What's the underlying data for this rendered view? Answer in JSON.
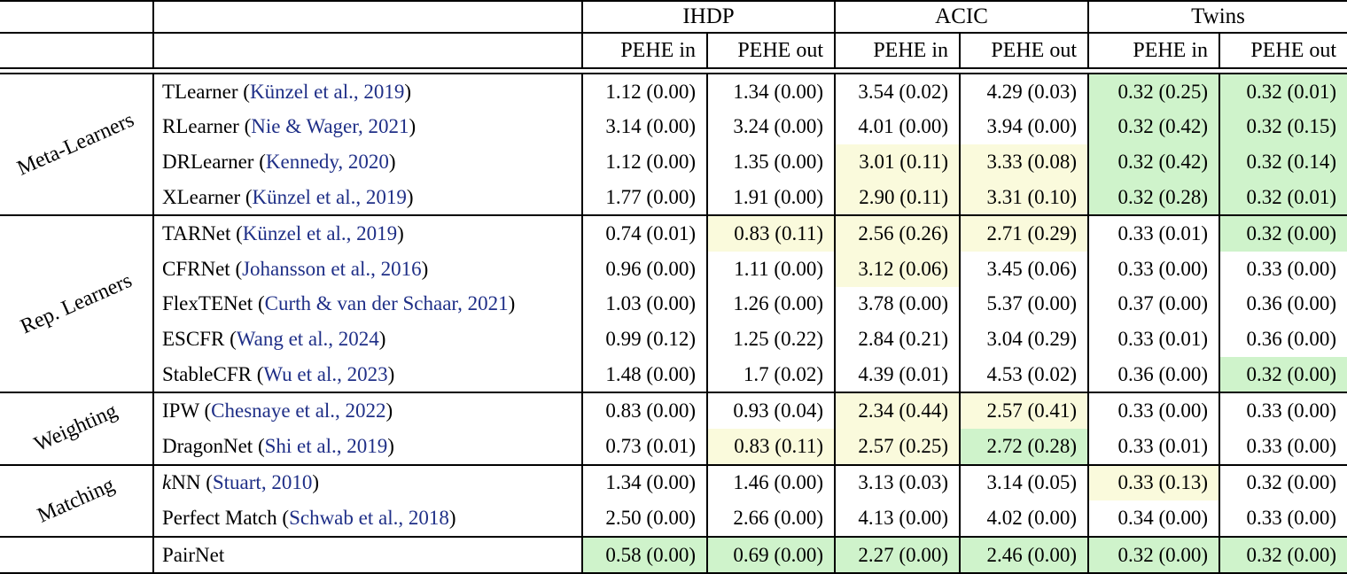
{
  "table": {
    "corner_cells": [
      "",
      ""
    ],
    "datasets": [
      {
        "label": "IHDP"
      },
      {
        "label": "ACIC"
      },
      {
        "label": "Twins"
      }
    ],
    "metric_columns": [
      "PEHE in",
      "PEHE out",
      "PEHE in",
      "PEHE out",
      "PEHE in",
      "PEHE out"
    ],
    "group_labels": [
      "Meta-Learners",
      "Rep. Learners",
      "Weighting",
      "Matching"
    ],
    "colors": {
      "highlight_green": "#cff3cb",
      "highlight_yellow": "#fafadc",
      "citation_blue": "#1f2f87",
      "rule_black": "#000000",
      "text_black": "#000000",
      "background_white": "#ffffff"
    },
    "rows": [
      {
        "group": "Meta-Learners",
        "group_span": 4,
        "method": "TLearner",
        "cite": "Künzel et al., 2019",
        "values": [
          "1.12 (0.00)",
          "1.34 (0.00)",
          "3.54 (0.02)",
          "4.29 (0.03)",
          "0.32 (0.25)",
          "0.32 (0.01)"
        ],
        "highlights": [
          "",
          "",
          "",
          "",
          "green",
          "green"
        ]
      },
      {
        "method": "RLearner",
        "cite": "Nie & Wager, 2021",
        "values": [
          "3.14 (0.00)",
          "3.24 (0.00)",
          "4.01 (0.00)",
          "3.94 (0.00)",
          "0.32 (0.42)",
          "0.32 (0.15)"
        ],
        "highlights": [
          "",
          "",
          "",
          "",
          "green",
          "green"
        ]
      },
      {
        "method": "DRLearner",
        "cite": "Kennedy, 2020",
        "values": [
          "1.12 (0.00)",
          "1.35 (0.00)",
          "3.01 (0.11)",
          "3.33 (0.08)",
          "0.32 (0.42)",
          "0.32 (0.14)"
        ],
        "highlights": [
          "",
          "",
          "yellow",
          "yellow",
          "green",
          "green"
        ]
      },
      {
        "method": "XLearner",
        "cite": "Künzel et al., 2019",
        "values": [
          "1.77 (0.00)",
          "1.91 (0.00)",
          "2.90 (0.11)",
          "3.31 (0.10)",
          "0.32 (0.28)",
          "0.32 (0.01)"
        ],
        "highlights": [
          "",
          "",
          "yellow",
          "yellow",
          "green",
          "green"
        ]
      },
      {
        "group": "Rep. Learners",
        "group_span": 5,
        "method": "TARNet",
        "cite": "Künzel et al., 2019",
        "values": [
          "0.74 (0.01)",
          "0.83 (0.11)",
          "2.56 (0.26)",
          "2.71 (0.29)",
          "0.33 (0.01)",
          "0.32 (0.00)"
        ],
        "highlights": [
          "",
          "yellow",
          "yellow",
          "yellow",
          "",
          "green"
        ]
      },
      {
        "method": "CFRNet",
        "cite": "Johansson et al., 2016",
        "values": [
          "0.96 (0.00)",
          "1.11 (0.00)",
          "3.12 (0.06)",
          "3.45 (0.06)",
          "0.33 (0.00)",
          "0.33 (0.00)"
        ],
        "highlights": [
          "",
          "",
          "yellow",
          "",
          "",
          ""
        ]
      },
      {
        "method": "FlexTENet",
        "cite": "Curth & van der Schaar, 2021",
        "values": [
          "1.03 (0.00)",
          "1.26 (0.00)",
          "3.78 (0.00)",
          "5.37 (0.00)",
          "0.37 (0.00)",
          "0.36 (0.00)"
        ],
        "highlights": [
          "",
          "",
          "",
          "",
          "",
          ""
        ]
      },
      {
        "method": "ESCFR",
        "cite": "Wang et al., 2024",
        "values": [
          "0.99 (0.12)",
          "1.25 (0.22)",
          "2.84 (0.21)",
          "3.04 (0.29)",
          "0.33 (0.01)",
          "0.36 (0.00)"
        ],
        "highlights": [
          "",
          "",
          "",
          "",
          "",
          ""
        ]
      },
      {
        "method": "StableCFR",
        "cite": "Wu et al., 2023",
        "values": [
          "1.48 (0.00)",
          "1.7 (0.02)",
          "4.39 (0.01)",
          "4.53 (0.02)",
          "0.36 (0.00)",
          "0.32 (0.00)"
        ],
        "highlights": [
          "",
          "",
          "",
          "",
          "",
          "green"
        ]
      },
      {
        "group": "Weighting",
        "group_span": 2,
        "method": "IPW",
        "cite": "Chesnaye et al., 2022",
        "values": [
          "0.83 (0.00)",
          "0.93 (0.04)",
          "2.34 (0.44)",
          "2.57 (0.41)",
          "0.33 (0.00)",
          "0.33 (0.00)"
        ],
        "highlights": [
          "",
          "",
          "yellow",
          "yellow",
          "",
          ""
        ]
      },
      {
        "method": "DragonNet",
        "cite": "Shi et al., 2019",
        "values": [
          "0.73 (0.01)",
          "0.83 (0.11)",
          "2.57 (0.25)",
          "2.72 (0.28)",
          "0.33 (0.01)",
          "0.33 (0.00)"
        ],
        "highlights": [
          "",
          "yellow",
          "yellow",
          "green",
          "",
          ""
        ]
      },
      {
        "group": "Matching",
        "group_span": 2,
        "method": "kNN",
        "method_italic_first": true,
        "cite": "Stuart, 2010",
        "values": [
          "1.34 (0.00)",
          "1.46 (0.00)",
          "3.13 (0.03)",
          "3.14 (0.05)",
          "0.33 (0.13)",
          "0.32 (0.00)"
        ],
        "highlights": [
          "",
          "",
          "",
          "",
          "yellow",
          ""
        ]
      },
      {
        "method": "Perfect Match",
        "cite": "Schwab et al., 2018",
        "values": [
          "2.50 (0.00)",
          "2.66 (0.00)",
          "4.13 (0.00)",
          "4.02 (0.00)",
          "0.34 (0.00)",
          "0.33 (0.00)"
        ],
        "highlights": [
          "",
          "",
          "",
          "",
          "",
          ""
        ]
      },
      {
        "group": "",
        "group_span": 1,
        "method": "PairNet",
        "cite": "",
        "values": [
          "0.58 (0.00)",
          "0.69 (0.00)",
          "2.27 (0.00)",
          "2.46 (0.00)",
          "0.32 (0.00)",
          "0.32 (0.00)"
        ],
        "highlights": [
          "green",
          "green",
          "green",
          "green",
          "green",
          "green"
        ]
      }
    ]
  }
}
